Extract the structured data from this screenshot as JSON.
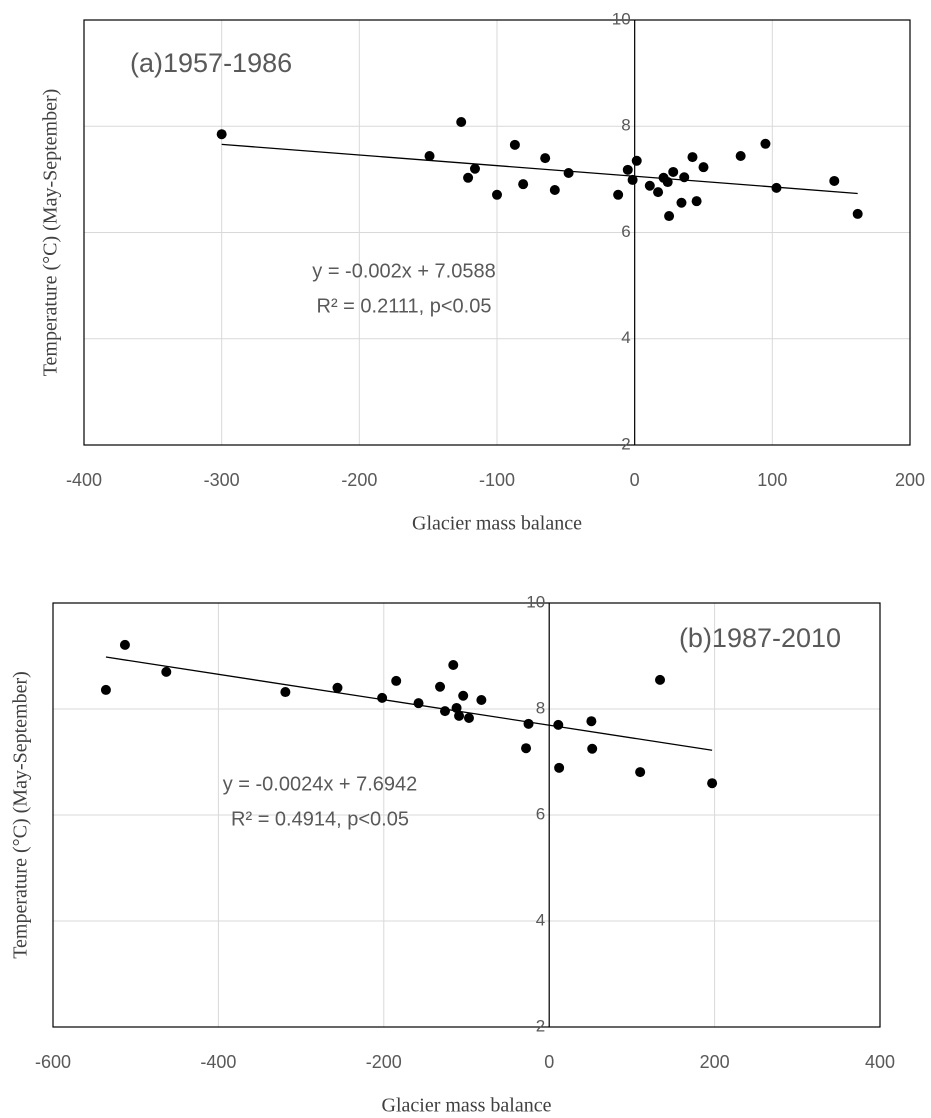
{
  "chart_data": [
    {
      "type": "scatter",
      "title": "(a)1957-1986",
      "x_label": "Glacier mass balance",
      "y_label": "Temperature (°C) (May-September)",
      "x": [
        -300,
        -149,
        -126,
        -121,
        -116,
        -100,
        -87,
        -81,
        -65,
        -58,
        -48,
        -12,
        -5,
        -1.5,
        1.5,
        11,
        17,
        21,
        24,
        25,
        28,
        34,
        36,
        42,
        45,
        50,
        77,
        95,
        103,
        145,
        162
      ],
      "y": [
        7.85,
        7.44,
        8.08,
        7.03,
        7.2,
        6.71,
        7.65,
        6.91,
        7.4,
        6.8,
        7.12,
        6.71,
        7.18,
        6.99,
        7.35,
        6.88,
        6.76,
        7.03,
        6.95,
        6.31,
        7.14,
        6.56,
        7.04,
        7.42,
        6.59,
        7.23,
        7.44,
        7.67,
        6.84,
        6.97,
        6.35
      ],
      "color": "#000000",
      "xlim": [
        -400,
        200
      ],
      "xticks": [
        -400,
        -300,
        -200,
        -100,
        0,
        100,
        200
      ],
      "ylim": [
        2,
        10
      ],
      "yticks": [
        2,
        4,
        6,
        8,
        10
      ],
      "grid": true,
      "trendline": {
        "slope": -0.002,
        "intercept": 7.0588
      },
      "annotations": [
        "y = -0.002x + 7.0588",
        "R² = 0.2111, p<0.05"
      ]
    },
    {
      "type": "scatter",
      "title": "(b)1987-2010",
      "x_label": "Glacier mass balance",
      "y_label": "Temperature (°C) (May-September)",
      "x": [
        -536,
        -513,
        -463,
        -319,
        -256,
        -202,
        -185,
        -158,
        -132,
        -126,
        -116,
        -112,
        -109,
        -104,
        -97,
        -82,
        -28,
        -25,
        11,
        12,
        51,
        52,
        110,
        134,
        197
      ],
      "y": [
        8.36,
        9.21,
        8.7,
        8.32,
        8.4,
        8.21,
        8.53,
        8.11,
        8.42,
        7.96,
        8.83,
        8.02,
        7.87,
        8.25,
        7.83,
        8.17,
        7.26,
        7.72,
        7.7,
        6.89,
        7.77,
        7.25,
        6.81,
        8.55,
        6.6
      ],
      "color": "#000000",
      "xlim": [
        -600,
        400
      ],
      "xticks": [
        -600,
        -400,
        -200,
        0,
        200,
        400
      ],
      "ylim": [
        2,
        10
      ],
      "yticks": [
        2,
        4,
        6,
        8,
        10
      ],
      "grid": true,
      "trendline": {
        "slope": -0.0024,
        "intercept": 7.6942
      },
      "annotations": [
        "y = -0.0024x + 7.6942",
        "R² = 0.4914, p<0.05"
      ]
    }
  ]
}
